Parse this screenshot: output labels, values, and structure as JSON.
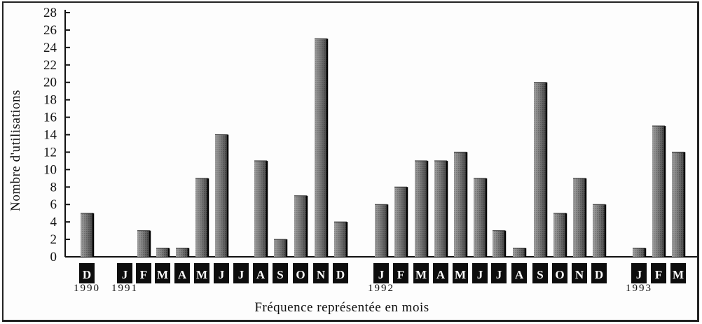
{
  "chart_data": {
    "type": "bar",
    "ylabel": "Nombre d'utilisations",
    "xlabel": "Fréquence représentée en mois",
    "ylim": [
      0,
      28
    ],
    "yticks": [
      0,
      2,
      4,
      6,
      8,
      10,
      12,
      14,
      16,
      18,
      20,
      22,
      24,
      26,
      28
    ],
    "grid": false,
    "categories": [
      "D",
      "J",
      "F",
      "M",
      "A",
      "M",
      "J",
      "J",
      "A",
      "S",
      "O",
      "N",
      "D",
      "J",
      "F",
      "M",
      "A",
      "M",
      "J",
      "J",
      "A",
      "S",
      "O",
      "N",
      "D",
      "J",
      "F",
      "M"
    ],
    "values": [
      5,
      0,
      3,
      1,
      1,
      9,
      14,
      0,
      11,
      2,
      7,
      25,
      4,
      6,
      8,
      11,
      11,
      12,
      9,
      3,
      1,
      20,
      5,
      9,
      6,
      1,
      15,
      12
    ],
    "years": [
      {
        "label": "1990",
        "category_index": 0
      },
      {
        "label": "1991",
        "category_index": 1
      },
      {
        "label": "1992",
        "category_index": 13
      },
      {
        "label": "1993",
        "category_index": 25
      }
    ]
  }
}
